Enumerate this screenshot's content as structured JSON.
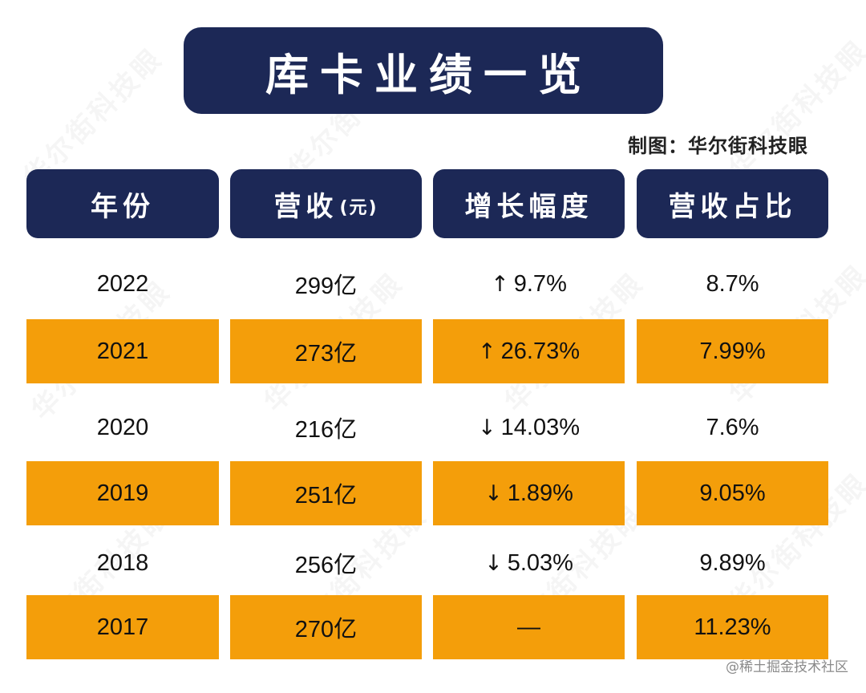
{
  "title": "库卡业绩一览",
  "credit": "制图：华尔街科技眼",
  "watermark_text": "华尔街科技眼",
  "headers": {
    "year": "年份",
    "revenue": "营收",
    "revenue_unit": "(元)",
    "growth": "增长幅度",
    "share": "营收占比"
  },
  "rows": [
    {
      "year": "2022",
      "revenue": "299亿",
      "arrow": "↑",
      "growth": "9.7%",
      "share": "8.7%"
    },
    {
      "year": "2021",
      "revenue": "273亿",
      "arrow": "↑",
      "growth": "26.73%",
      "share": "7.99%"
    },
    {
      "year": "2020",
      "revenue": "216亿",
      "arrow": "↓",
      "growth": "14.03%",
      "share": "7.6%"
    },
    {
      "year": "2019",
      "revenue": "251亿",
      "arrow": "↓",
      "growth": "1.89%",
      "share": "9.05%"
    },
    {
      "year": "2018",
      "revenue": "256亿",
      "arrow": "↓",
      "growth": "5.03%",
      "share": "9.89%"
    },
    {
      "year": "2017",
      "revenue": "270亿",
      "arrow": "",
      "growth": "—",
      "share": "11.23%"
    }
  ],
  "footer": "@稀土掘金技术社区",
  "colors": {
    "navy": "#1c2856",
    "orange": "#f49e0a"
  }
}
